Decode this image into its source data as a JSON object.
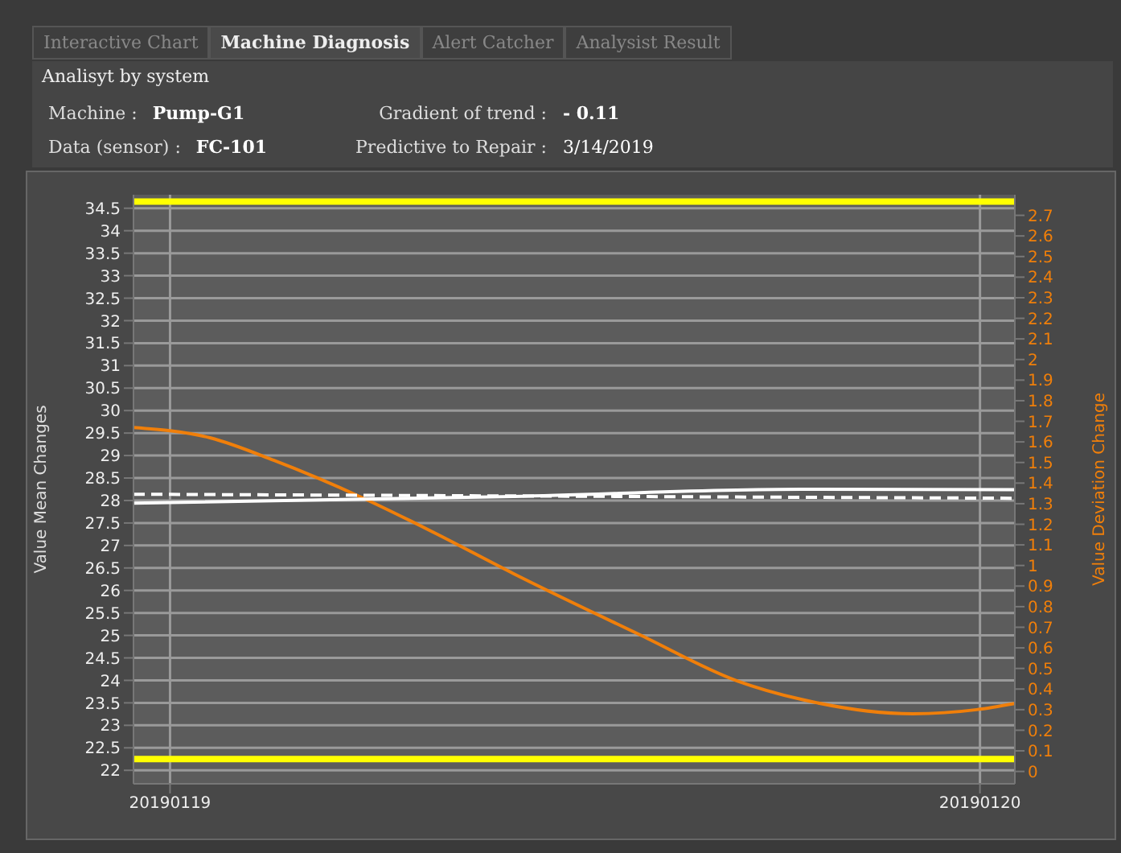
{
  "chart_data": {
    "type": "line",
    "title": "Analisyt by system",
    "annotations": [
      "Interactive Chart",
      "Machine Diagnosis",
      "Alert Catcher",
      "Analysist Result",
      "Machine :",
      "Pump-G1",
      "Gradient of trend :",
      "- 0.11",
      "Data (sensor) :",
      "FC-101",
      "Predictive to Repair :",
      "3/14/2019"
    ],
    "ylabel": "Value Mean Changes",
    "y2label": "Value Deviation Change",
    "xlim": [
      "2019-01-18T22:55",
      "2019-01-20T01:02"
    ],
    "xticks": [
      {
        "value": "2019-01-19",
        "label": "20190119"
      },
      {
        "value": "2019-01-20",
        "label": "20190120"
      }
    ],
    "ylim": [
      21.7,
      34.8
    ],
    "yticks": [
      22,
      22.5,
      23,
      23.5,
      24,
      24.5,
      25,
      25.5,
      26,
      26.5,
      27,
      27.5,
      28,
      28.5,
      29,
      29.5,
      30,
      30.5,
      31,
      31.5,
      32,
      32.5,
      33,
      33.5,
      34,
      34.5
    ],
    "y2lim": [
      -0.06,
      2.8
    ],
    "y2ticks": [
      0,
      0.1,
      0.2,
      0.3,
      0.4,
      0.5,
      0.6,
      0.7,
      0.8,
      0.9,
      1,
      1.1,
      1.2,
      1.3,
      1.4,
      1.5,
      1.6,
      1.7,
      1.8,
      1.9,
      2,
      2.1,
      2.2,
      2.3,
      2.4,
      2.5,
      2.6,
      2.7
    ],
    "grid": true,
    "marker": "none",
    "ref_lines": [
      {
        "axis": "y",
        "value": 34.65,
        "color": "#ffff00"
      },
      {
        "axis": "y",
        "value": 22.25,
        "color": "#ffff00"
      }
    ],
    "series": [
      {
        "axis": "y2",
        "color": "#f07f0a",
        "x": [
          "2019-01-18T22:55",
          "2019-01-19T01:11",
          "2019-01-19T03:05",
          "2019-01-19T05:41",
          "2019-01-19T07:49",
          "2019-01-19T10:11",
          "2019-01-19T13:58",
          "2019-01-19T16:48",
          "2019-01-19T18:42",
          "2019-01-19T22:01",
          "2019-01-19T23:54",
          "2019-01-20T01:02"
        ],
        "values": [
          1.67,
          1.62,
          1.51,
          1.33,
          1.16,
          0.96,
          0.66,
          0.44,
          0.35,
          0.28,
          0.3,
          0.33
        ]
      },
      {
        "color": "#ffffff",
        "x": [
          "2019-01-18T22:55",
          "2019-01-19T10:11",
          "2019-01-19T18:42",
          "2019-01-20T01:02"
        ],
        "values": [
          27.94,
          28.09,
          28.25,
          28.24
        ]
      },
      {
        "color": "#ffffff",
        "line_style": "dashed",
        "x": [
          "2019-01-18T22:55",
          "2019-01-20T01:02"
        ],
        "values": [
          28.14,
          28.05
        ]
      }
    ]
  }
}
